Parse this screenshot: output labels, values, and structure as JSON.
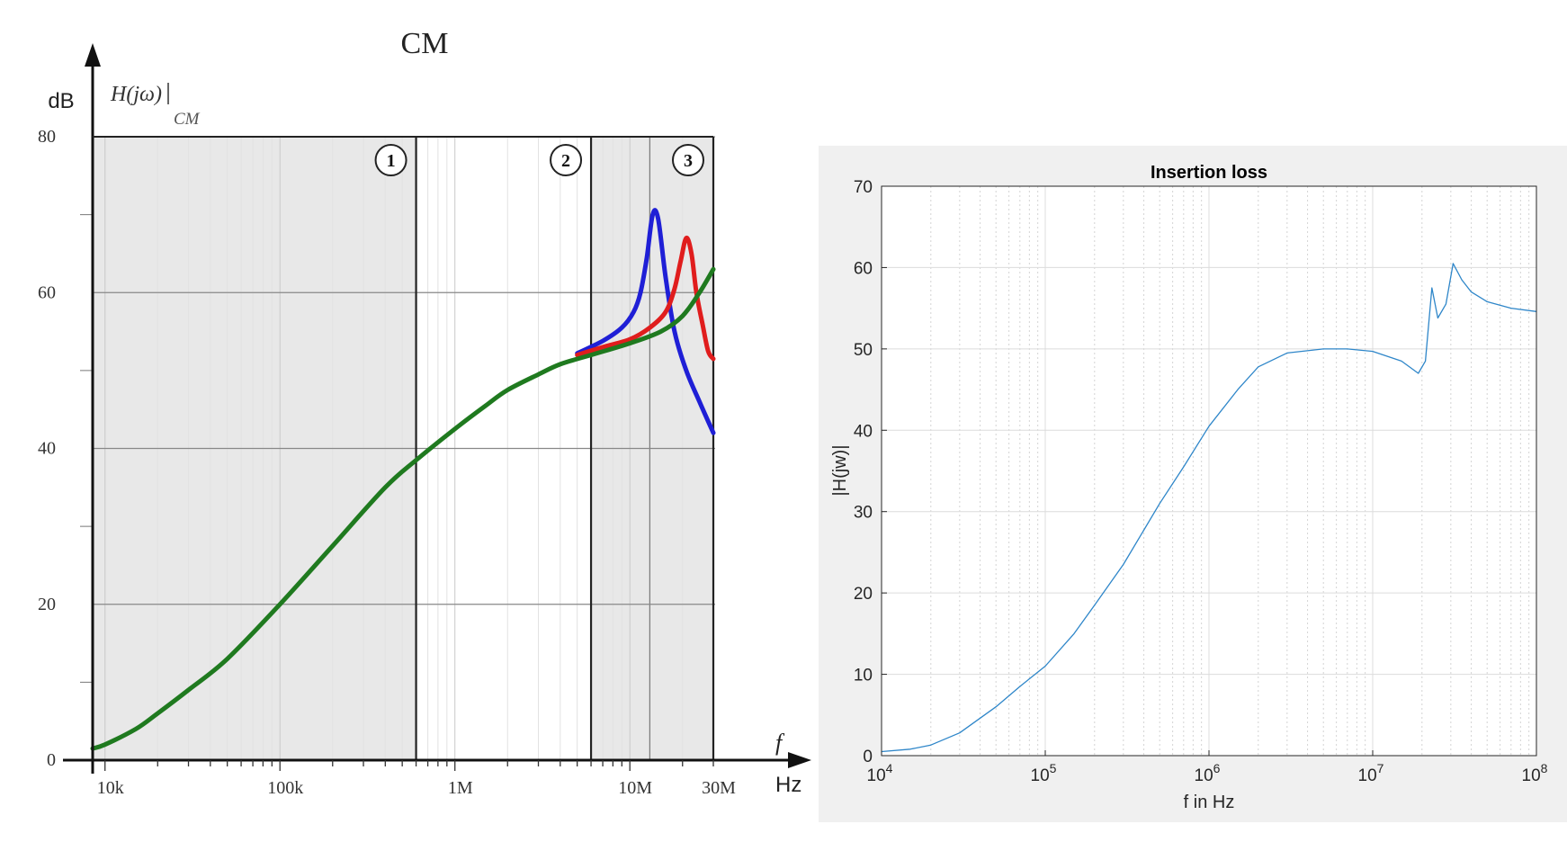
{
  "chart_data": [
    {
      "type": "line",
      "title": "CM",
      "ylabel_unit": "dB",
      "ylabel": "H(jω)",
      "ylabel_subscript": "CM",
      "xlabel": "f",
      "xlabel_unit": "Hz",
      "xscale": "log",
      "xlim": [
        8500,
        30000000
      ],
      "ylim": [
        0,
        80
      ],
      "yticks": [
        0,
        20,
        40,
        60,
        80
      ],
      "xticks": [
        {
          "value": 10000,
          "label": "10k"
        },
        {
          "value": 100000,
          "label": "100k"
        },
        {
          "value": 1000000,
          "label": "1M"
        },
        {
          "value": 10000000,
          "label": "10M"
        },
        {
          "value": 30000000,
          "label": "30M"
        }
      ],
      "regions": [
        {
          "label": "1",
          "from": 8500,
          "to": 600000,
          "shaded": true
        },
        {
          "label": "2",
          "from": 600000,
          "to": 6000000,
          "shaded": false
        },
        {
          "label": "3",
          "from": 6000000,
          "to": 30000000,
          "shaded": true
        }
      ],
      "extra_gridlines_x": [
        13000000
      ],
      "grid": true,
      "colors": {
        "blue": "#1f1fd6",
        "red": "#e01d1d",
        "green": "#1f7a1f",
        "shade": "#e8e8e8"
      },
      "series": [
        {
          "color": "#1f1fd6",
          "x": [
            5000000,
            7000000,
            9000000,
            10500000,
            11500000,
            12500000,
            13500000,
            14500000,
            16000000,
            18000000,
            21000000,
            25000000,
            30000000
          ],
          "y": [
            52.2,
            53.8,
            55.5,
            57.5,
            60.0,
            64.5,
            70.0,
            69.5,
            62.0,
            55.0,
            50.0,
            46.0,
            42.0
          ]
        },
        {
          "color": "#e01d1d",
          "x": [
            5000000,
            7000000,
            10000000,
            13000000,
            16000000,
            18000000,
            19500000,
            21000000,
            22500000,
            24000000,
            26000000,
            28000000,
            30000000
          ],
          "y": [
            52.0,
            53.0,
            54.0,
            55.5,
            57.5,
            60.5,
            64.0,
            67.0,
            65.0,
            60.0,
            56.0,
            52.5,
            51.5
          ]
        },
        {
          "color": "#1f7a1f",
          "x": [
            8500,
            10000,
            15000,
            20000,
            30000,
            50000,
            100000,
            200000,
            400000,
            600000,
            1000000,
            1500000,
            2000000,
            3000000,
            4000000,
            6000000,
            10000000,
            15000000,
            20000000,
            25000000,
            30000000
          ],
          "y": [
            1.5,
            2.0,
            4.0,
            6.0,
            9.0,
            13.0,
            20.0,
            27.5,
            35.0,
            38.5,
            42.5,
            45.5,
            47.5,
            49.5,
            50.8,
            52.0,
            53.5,
            55.0,
            57.0,
            60.0,
            63.0
          ]
        }
      ]
    },
    {
      "type": "line",
      "title": "Insertion loss",
      "xlabel": "f in Hz",
      "ylabel": "|H(jw)|",
      "xscale": "log",
      "xlim": [
        10000,
        100000000
      ],
      "ylim": [
        0,
        70
      ],
      "yticks": [
        0,
        10,
        20,
        30,
        40,
        50,
        60,
        70
      ],
      "xticks": [
        {
          "value": 10000,
          "base": "10",
          "exp": "4"
        },
        {
          "value": 100000,
          "base": "10",
          "exp": "5"
        },
        {
          "value": 1000000,
          "base": "10",
          "exp": "6"
        },
        {
          "value": 10000000,
          "base": "10",
          "exp": "7"
        },
        {
          "value": 100000000,
          "base": "10",
          "exp": "8"
        }
      ],
      "grid": true,
      "colors": {
        "line": "#2e86c9",
        "background": "#f0f0f0"
      },
      "series": [
        {
          "color": "#2e86c9",
          "x": [
            10000,
            15000,
            20000,
            30000,
            50000,
            70000,
            100000,
            150000,
            200000,
            300000,
            500000,
            700000,
            1000000,
            1500000,
            2000000,
            3000000,
            5000000,
            7000000,
            10000000,
            15000000,
            19000000,
            21000000,
            23000000,
            25000000,
            28000000,
            31000000,
            35000000,
            40000000,
            50000000,
            70000000,
            100000000
          ],
          "y": [
            0.5,
            0.8,
            1.3,
            2.8,
            6.0,
            8.5,
            11.0,
            15.0,
            18.5,
            23.5,
            31.0,
            35.5,
            40.5,
            45.0,
            47.8,
            49.5,
            50.0,
            50.0,
            49.7,
            48.5,
            47.0,
            48.5,
            57.5,
            53.8,
            55.5,
            60.5,
            58.5,
            57.0,
            55.8,
            55.0,
            54.6
          ]
        }
      ]
    }
  ]
}
